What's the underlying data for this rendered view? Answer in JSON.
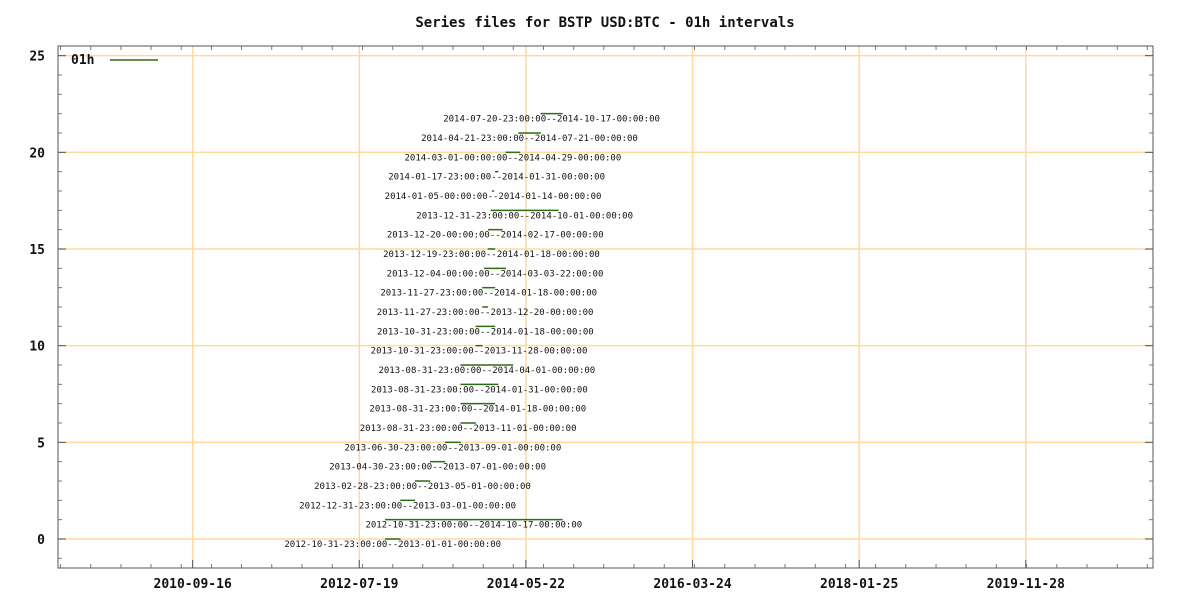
{
  "chart_data": {
    "type": "bar",
    "title": "Series files for BSTP USD:BTC - 01h intervals",
    "xlabel": "",
    "ylabel": "",
    "legend": {
      "label": "01h",
      "placement": "top-left",
      "color": "#2e6b12"
    },
    "grid": true,
    "grid_color": "#ffd9a0",
    "x_range": [
      "2009-03-22",
      "2021-04-24"
    ],
    "xticks": [
      "2010-09-16",
      "2012-07-19",
      "2014-05-22",
      "2016-03-24",
      "2018-01-25",
      "2019-11-28"
    ],
    "ylim": [
      -1.5,
      25.5
    ],
    "yticks": [
      0,
      5,
      10,
      15,
      20,
      25
    ],
    "series": [
      {
        "y": 0,
        "start": "2012-10-31",
        "end": "2013-01-01",
        "label": "2012-10-31-23:00:00--2013-01-01-00:00:00"
      },
      {
        "y": 1,
        "start": "2012-10-31",
        "end": "2014-10-17",
        "label": "2012-10-31-23:00:00--2014-10-17-00:00:00"
      },
      {
        "y": 2,
        "start": "2012-12-31",
        "end": "2013-03-01",
        "label": "2012-12-31-23:00:00--2013-03-01-00:00:00"
      },
      {
        "y": 3,
        "start": "2013-02-28",
        "end": "2013-05-01",
        "label": "2013-02-28-23:00:00--2013-05-01-00:00:00"
      },
      {
        "y": 4,
        "start": "2013-04-30",
        "end": "2013-07-01",
        "label": "2013-04-30-23:00:00--2013-07-01-00:00:00"
      },
      {
        "y": 5,
        "start": "2013-06-30",
        "end": "2013-09-01",
        "label": "2013-06-30-23:00:00--2013-09-01-00:00:00"
      },
      {
        "y": 6,
        "start": "2013-08-31",
        "end": "2013-11-01",
        "label": "2013-08-31-23:00:00--2013-11-01-00:00:00"
      },
      {
        "y": 7,
        "start": "2013-08-31",
        "end": "2014-01-18",
        "label": "2013-08-31-23:00:00--2014-01-18-00:00:00"
      },
      {
        "y": 8,
        "start": "2013-08-31",
        "end": "2014-01-31",
        "label": "2013-08-31-23:00:00--2014-01-31-00:00:00"
      },
      {
        "y": 9,
        "start": "2013-08-31",
        "end": "2014-04-01",
        "label": "2013-08-31-23:00:00--2014-04-01-00:00:00"
      },
      {
        "y": 10,
        "start": "2013-10-31",
        "end": "2013-11-28",
        "label": "2013-10-31-23:00:00--2013-11-28-00:00:00"
      },
      {
        "y": 11,
        "start": "2013-10-31",
        "end": "2014-01-18",
        "label": "2013-10-31-23:00:00--2014-01-18-00:00:00"
      },
      {
        "y": 12,
        "start": "2013-11-27",
        "end": "2013-12-20",
        "label": "2013-11-27-23:00:00--2013-12-20-00:00:00"
      },
      {
        "y": 13,
        "start": "2013-11-27",
        "end": "2014-01-18",
        "label": "2013-11-27-23:00:00--2014-01-18-00:00:00"
      },
      {
        "y": 14,
        "start": "2013-12-04",
        "end": "2014-03-03",
        "label": "2013-12-04-00:00:00--2014-03-03-22:00:00"
      },
      {
        "y": 15,
        "start": "2013-12-19",
        "end": "2014-01-18",
        "label": "2013-12-19-23:00:00--2014-01-18-00:00:00"
      },
      {
        "y": 16,
        "start": "2013-12-20",
        "end": "2014-02-17",
        "label": "2013-12-20-00:00:00--2014-02-17-00:00:00"
      },
      {
        "y": 17,
        "start": "2013-12-31",
        "end": "2014-10-01",
        "label": "2013-12-31-23:00:00--2014-10-01-00:00:00"
      },
      {
        "y": 18,
        "start": "2014-01-05",
        "end": "2014-01-14",
        "label": "2014-01-05-00:00:00--2014-01-14-00:00:00"
      },
      {
        "y": 19,
        "start": "2014-01-17",
        "end": "2014-01-31",
        "label": "2014-01-17-23:00:00--2014-01-31-00:00:00"
      },
      {
        "y": 20,
        "start": "2014-03-01",
        "end": "2014-04-29",
        "label": "2014-03-01-00:00:00--2014-04-29-00:00:00"
      },
      {
        "y": 21,
        "start": "2014-04-21",
        "end": "2014-07-21",
        "label": "2014-04-21-23:00:00--2014-07-21-00:00:00"
      },
      {
        "y": 22,
        "start": "2014-07-20",
        "end": "2014-10-17",
        "label": "2014-07-20-23:00:00--2014-10-17-00:00:00"
      }
    ]
  }
}
